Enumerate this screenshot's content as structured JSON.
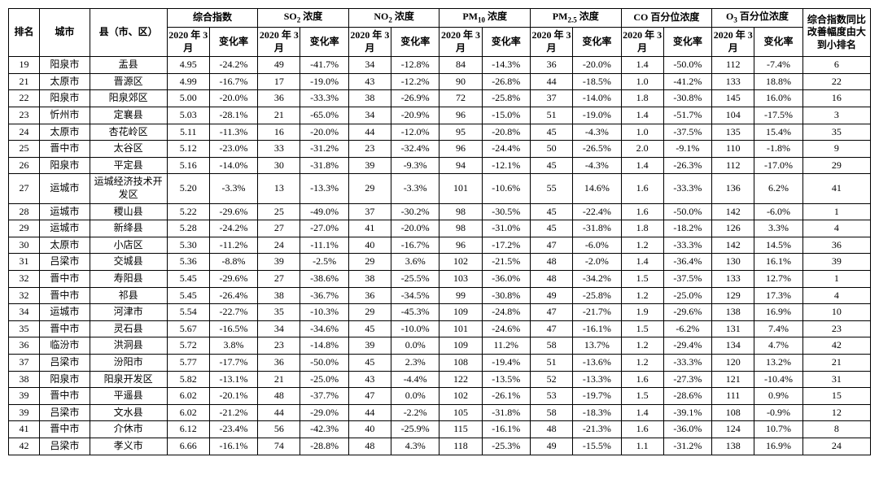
{
  "headers": {
    "rank": "排名",
    "city": "城市",
    "county": "县（市、区）",
    "groups": [
      "综合指数",
      "SO₂ 浓度",
      "NO₂ 浓度",
      "PM₁₀ 浓度",
      "PM₂.₅ 浓度",
      "CO 百分位浓度",
      "O₃ 百分位浓度"
    ],
    "sub_val": "2020 年 3 月",
    "sub_rate": "变化率",
    "last": "综合指数同比改善幅度由大到小排名"
  },
  "columns_meta": {
    "group_sub_html": [
      "综合指数",
      "SO<sub>2</sub> 浓度",
      "NO<sub>2</sub> 浓度",
      "PM<sub>10</sub> 浓度",
      "PM<sub>2.5</sub> 浓度",
      "CO 百分位浓度",
      "O<sub>3</sub> 百分位浓度"
    ]
  },
  "rows": [
    {
      "rank": "19",
      "city": "阳泉市",
      "county": "盂县",
      "v": [
        [
          "4.95",
          "-24.2%"
        ],
        [
          "49",
          "-41.7%"
        ],
        [
          "34",
          "-12.8%"
        ],
        [
          "84",
          "-14.3%"
        ],
        [
          "36",
          "-20.0%"
        ],
        [
          "1.4",
          "-50.0%"
        ],
        [
          "112",
          "-7.4%"
        ]
      ],
      "last": "6"
    },
    {
      "rank": "21",
      "city": "太原市",
      "county": "晋源区",
      "v": [
        [
          "4.99",
          "-16.7%"
        ],
        [
          "17",
          "-19.0%"
        ],
        [
          "43",
          "-12.2%"
        ],
        [
          "90",
          "-26.8%"
        ],
        [
          "44",
          "-18.5%"
        ],
        [
          "1.0",
          "-41.2%"
        ],
        [
          "133",
          "18.8%"
        ]
      ],
      "last": "22"
    },
    {
      "rank": "22",
      "city": "阳泉市",
      "county": "阳泉郊区",
      "v": [
        [
          "5.00",
          "-20.0%"
        ],
        [
          "36",
          "-33.3%"
        ],
        [
          "38",
          "-26.9%"
        ],
        [
          "72",
          "-25.8%"
        ],
        [
          "37",
          "-14.0%"
        ],
        [
          "1.8",
          "-30.8%"
        ],
        [
          "145",
          "16.0%"
        ]
      ],
      "last": "16"
    },
    {
      "rank": "23",
      "city": "忻州市",
      "county": "定襄县",
      "v": [
        [
          "5.03",
          "-28.1%"
        ],
        [
          "21",
          "-65.0%"
        ],
        [
          "34",
          "-20.9%"
        ],
        [
          "96",
          "-15.0%"
        ],
        [
          "51",
          "-19.0%"
        ],
        [
          "1.4",
          "-51.7%"
        ],
        [
          "104",
          "-17.5%"
        ]
      ],
      "last": "3"
    },
    {
      "rank": "24",
      "city": "太原市",
      "county": "杏花岭区",
      "v": [
        [
          "5.11",
          "-11.3%"
        ],
        [
          "16",
          "-20.0%"
        ],
        [
          "44",
          "-12.0%"
        ],
        [
          "95",
          "-20.8%"
        ],
        [
          "45",
          "-4.3%"
        ],
        [
          "1.0",
          "-37.5%"
        ],
        [
          "135",
          "15.4%"
        ]
      ],
      "last": "35"
    },
    {
      "rank": "25",
      "city": "晋中市",
      "county": "太谷区",
      "v": [
        [
          "5.12",
          "-23.0%"
        ],
        [
          "33",
          "-31.2%"
        ],
        [
          "23",
          "-32.4%"
        ],
        [
          "96",
          "-24.4%"
        ],
        [
          "50",
          "-26.5%"
        ],
        [
          "2.0",
          "-9.1%"
        ],
        [
          "110",
          "-1.8%"
        ]
      ],
      "last": "9"
    },
    {
      "rank": "26",
      "city": "阳泉市",
      "county": "平定县",
      "v": [
        [
          "5.16",
          "-14.0%"
        ],
        [
          "30",
          "-31.8%"
        ],
        [
          "39",
          "-9.3%"
        ],
        [
          "94",
          "-12.1%"
        ],
        [
          "45",
          "-4.3%"
        ],
        [
          "1.4",
          "-26.3%"
        ],
        [
          "112",
          "-17.0%"
        ]
      ],
      "last": "29"
    },
    {
      "rank": "27",
      "city": "运城市",
      "county": "运城经济技术开发区",
      "v": [
        [
          "5.20",
          "-3.3%"
        ],
        [
          "13",
          "-13.3%"
        ],
        [
          "29",
          "-3.3%"
        ],
        [
          "101",
          "-10.6%"
        ],
        [
          "55",
          "14.6%"
        ],
        [
          "1.6",
          "-33.3%"
        ],
        [
          "136",
          "6.2%"
        ]
      ],
      "last": "41"
    },
    {
      "rank": "28",
      "city": "运城市",
      "county": "稷山县",
      "v": [
        [
          "5.22",
          "-29.6%"
        ],
        [
          "25",
          "-49.0%"
        ],
        [
          "37",
          "-30.2%"
        ],
        [
          "98",
          "-30.5%"
        ],
        [
          "45",
          "-22.4%"
        ],
        [
          "1.6",
          "-50.0%"
        ],
        [
          "142",
          "-6.0%"
        ]
      ],
      "last": "1"
    },
    {
      "rank": "29",
      "city": "运城市",
      "county": "新绛县",
      "v": [
        [
          "5.28",
          "-24.2%"
        ],
        [
          "27",
          "-27.0%"
        ],
        [
          "41",
          "-20.0%"
        ],
        [
          "98",
          "-31.0%"
        ],
        [
          "45",
          "-31.8%"
        ],
        [
          "1.8",
          "-18.2%"
        ],
        [
          "126",
          "3.3%"
        ]
      ],
      "last": "4"
    },
    {
      "rank": "30",
      "city": "太原市",
      "county": "小店区",
      "v": [
        [
          "5.30",
          "-11.2%"
        ],
        [
          "24",
          "-11.1%"
        ],
        [
          "40",
          "-16.7%"
        ],
        [
          "96",
          "-17.2%"
        ],
        [
          "47",
          "-6.0%"
        ],
        [
          "1.2",
          "-33.3%"
        ],
        [
          "142",
          "14.5%"
        ]
      ],
      "last": "36"
    },
    {
      "rank": "31",
      "city": "吕梁市",
      "county": "交城县",
      "v": [
        [
          "5.36",
          "-8.8%"
        ],
        [
          "39",
          "-2.5%"
        ],
        [
          "29",
          "3.6%"
        ],
        [
          "102",
          "-21.5%"
        ],
        [
          "48",
          "-2.0%"
        ],
        [
          "1.4",
          "-36.4%"
        ],
        [
          "130",
          "16.1%"
        ]
      ],
      "last": "39"
    },
    {
      "rank": "32",
      "city": "晋中市",
      "county": "寿阳县",
      "v": [
        [
          "5.45",
          "-29.6%"
        ],
        [
          "27",
          "-38.6%"
        ],
        [
          "38",
          "-25.5%"
        ],
        [
          "103",
          "-36.0%"
        ],
        [
          "48",
          "-34.2%"
        ],
        [
          "1.5",
          "-37.5%"
        ],
        [
          "133",
          "12.7%"
        ]
      ],
      "last": "1"
    },
    {
      "rank": "32",
      "city": "晋中市",
      "county": "祁县",
      "v": [
        [
          "5.45",
          "-26.4%"
        ],
        [
          "38",
          "-36.7%"
        ],
        [
          "36",
          "-34.5%"
        ],
        [
          "99",
          "-30.8%"
        ],
        [
          "49",
          "-25.8%"
        ],
        [
          "1.2",
          "-25.0%"
        ],
        [
          "129",
          "17.3%"
        ]
      ],
      "last": "4"
    },
    {
      "rank": "34",
      "city": "运城市",
      "county": "河津市",
      "v": [
        [
          "5.54",
          "-22.7%"
        ],
        [
          "35",
          "-10.3%"
        ],
        [
          "29",
          "-45.3%"
        ],
        [
          "109",
          "-24.8%"
        ],
        [
          "47",
          "-21.7%"
        ],
        [
          "1.9",
          "-29.6%"
        ],
        [
          "138",
          "16.9%"
        ]
      ],
      "last": "10"
    },
    {
      "rank": "35",
      "city": "晋中市",
      "county": "灵石县",
      "v": [
        [
          "5.67",
          "-16.5%"
        ],
        [
          "34",
          "-34.6%"
        ],
        [
          "45",
          "-10.0%"
        ],
        [
          "101",
          "-24.6%"
        ],
        [
          "47",
          "-16.1%"
        ],
        [
          "1.5",
          "-6.2%"
        ],
        [
          "131",
          "7.4%"
        ]
      ],
      "last": "23"
    },
    {
      "rank": "36",
      "city": "临汾市",
      "county": "洪洞县",
      "v": [
        [
          "5.72",
          "3.8%"
        ],
        [
          "23",
          "-14.8%"
        ],
        [
          "39",
          "0.0%"
        ],
        [
          "109",
          "11.2%"
        ],
        [
          "58",
          "13.7%"
        ],
        [
          "1.2",
          "-29.4%"
        ],
        [
          "134",
          "4.7%"
        ]
      ],
      "last": "42"
    },
    {
      "rank": "37",
      "city": "吕梁市",
      "county": "汾阳市",
      "v": [
        [
          "5.77",
          "-17.7%"
        ],
        [
          "36",
          "-50.0%"
        ],
        [
          "45",
          "2.3%"
        ],
        [
          "108",
          "-19.4%"
        ],
        [
          "51",
          "-13.6%"
        ],
        [
          "1.2",
          "-33.3%"
        ],
        [
          "120",
          "13.2%"
        ]
      ],
      "last": "21"
    },
    {
      "rank": "38",
      "city": "阳泉市",
      "county": "阳泉开发区",
      "v": [
        [
          "5.82",
          "-13.1%"
        ],
        [
          "21",
          "-25.0%"
        ],
        [
          "43",
          "-4.4%"
        ],
        [
          "122",
          "-13.5%"
        ],
        [
          "52",
          "-13.3%"
        ],
        [
          "1.6",
          "-27.3%"
        ],
        [
          "121",
          "-10.4%"
        ]
      ],
      "last": "31"
    },
    {
      "rank": "39",
      "city": "晋中市",
      "county": "平遥县",
      "v": [
        [
          "6.02",
          "-20.1%"
        ],
        [
          "48",
          "-37.7%"
        ],
        [
          "47",
          "0.0%"
        ],
        [
          "102",
          "-26.1%"
        ],
        [
          "53",
          "-19.7%"
        ],
        [
          "1.5",
          "-28.6%"
        ],
        [
          "111",
          "0.9%"
        ]
      ],
      "last": "15"
    },
    {
      "rank": "39",
      "city": "吕梁市",
      "county": "文水县",
      "v": [
        [
          "6.02",
          "-21.2%"
        ],
        [
          "44",
          "-29.0%"
        ],
        [
          "44",
          "-2.2%"
        ],
        [
          "105",
          "-31.8%"
        ],
        [
          "58",
          "-18.3%"
        ],
        [
          "1.4",
          "-39.1%"
        ],
        [
          "108",
          "-0.9%"
        ]
      ],
      "last": "12"
    },
    {
      "rank": "41",
      "city": "晋中市",
      "county": "介休市",
      "v": [
        [
          "6.12",
          "-23.4%"
        ],
        [
          "56",
          "-42.3%"
        ],
        [
          "40",
          "-25.9%"
        ],
        [
          "115",
          "-16.1%"
        ],
        [
          "48",
          "-21.3%"
        ],
        [
          "1.6",
          "-36.0%"
        ],
        [
          "124",
          "10.7%"
        ]
      ],
      "last": "8"
    },
    {
      "rank": "42",
      "city": "吕梁市",
      "county": "孝义市",
      "v": [
        [
          "6.66",
          "-16.1%"
        ],
        [
          "74",
          "-28.8%"
        ],
        [
          "48",
          "4.3%"
        ],
        [
          "118",
          "-25.3%"
        ],
        [
          "49",
          "-15.5%"
        ],
        [
          "1.1",
          "-31.2%"
        ],
        [
          "138",
          "16.9%"
        ]
      ],
      "last": "24"
    }
  ]
}
